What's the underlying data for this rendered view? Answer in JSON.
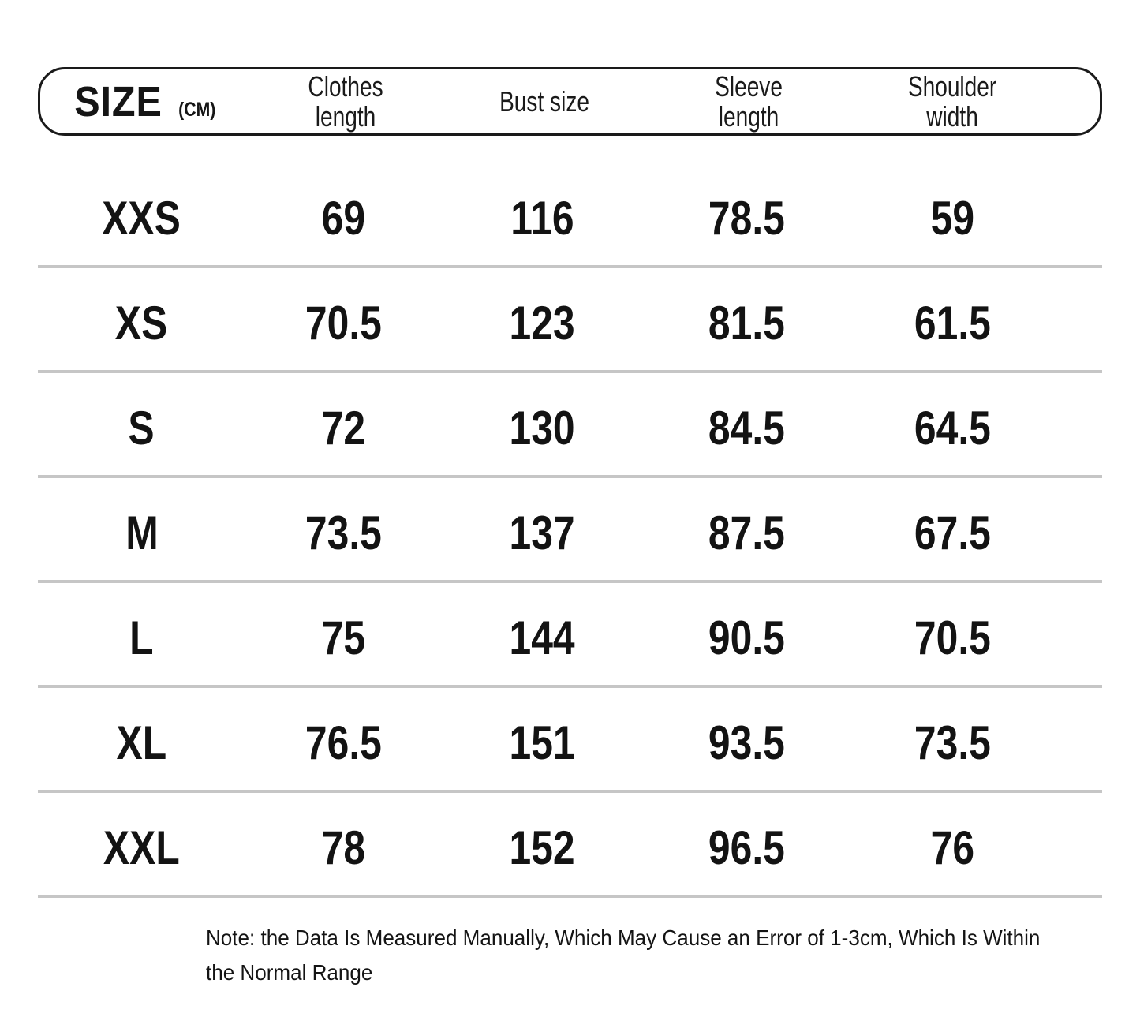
{
  "colors": {
    "text": "#151515",
    "header_border": "#1a1a1a",
    "row_divider": "#c6c6c6",
    "background": "#ffffff"
  },
  "header": {
    "size_label": "SIZE",
    "unit_label": "(CM)",
    "columns": [
      "Clothes\nlength",
      "Bust size",
      "Sleeve\nlength",
      "Shoulder\nwidth"
    ]
  },
  "note": "Note: the Data Is Measured Manually, Which May Cause an Error of 1-3cm, Which Is Within\nthe Normal Range",
  "chart_data": {
    "type": "table",
    "title": "SIZE (CM)",
    "unit": "cm",
    "columns": [
      "Size",
      "Clothes length",
      "Bust size",
      "Sleeve length",
      "Shoulder width"
    ],
    "rows": [
      [
        "XXS",
        "69",
        "116",
        "78.5",
        "59"
      ],
      [
        "XS",
        "70.5",
        "123",
        "81.5",
        "61.5"
      ],
      [
        "S",
        "72",
        "130",
        "84.5",
        "64.5"
      ],
      [
        "M",
        "73.5",
        "137",
        "87.5",
        "67.5"
      ],
      [
        "L",
        "75",
        "144",
        "90.5",
        "70.5"
      ],
      [
        "XL",
        "76.5",
        "151",
        "93.5",
        "73.5"
      ],
      [
        "XXL",
        "78",
        "152",
        "96.5",
        "76"
      ]
    ]
  }
}
